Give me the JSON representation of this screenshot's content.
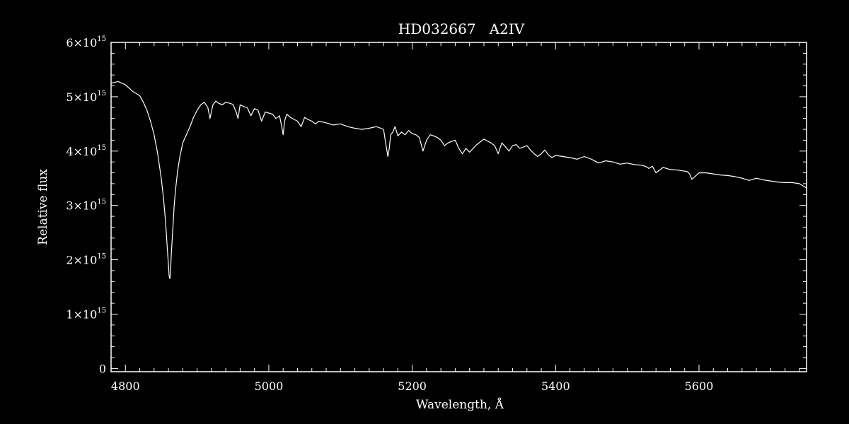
{
  "colors": {
    "background": "#000000",
    "foreground": "#ffffff"
  },
  "chart_data": {
    "type": "line",
    "title": "HD032667   A2IV",
    "xlabel": "Wavelength, Å",
    "ylabel": "Relative flux",
    "xlim": [
      4780,
      5750
    ],
    "ylim": [
      -60000000000000.0,
      6000000000000000.0
    ],
    "grid": false,
    "legend": "none",
    "x_ticks": [
      {
        "value": 4800,
        "label": "4800"
      },
      {
        "value": 5000,
        "label": "5000"
      },
      {
        "value": 5200,
        "label": "5200"
      },
      {
        "value": 5400,
        "label": "5400"
      },
      {
        "value": 5600,
        "label": "5600"
      }
    ],
    "y_ticks": [
      {
        "value": 0,
        "mant": "0",
        "exp": ""
      },
      {
        "value": 1000000000000000.0,
        "mant": "1×10",
        "exp": "15"
      },
      {
        "value": 2000000000000000.0,
        "mant": "2×10",
        "exp": "15"
      },
      {
        "value": 3000000000000000.0,
        "mant": "3×10",
        "exp": "15"
      },
      {
        "value": 4000000000000000.0,
        "mant": "4×10",
        "exp": "15"
      },
      {
        "value": 5000000000000000.0,
        "mant": "5×10",
        "exp": "15"
      },
      {
        "value": 6000000000000000.0,
        "mant": "6×10",
        "exp": "15"
      }
    ],
    "series": [
      {
        "x": [
          4780,
          4790,
          4800,
          4810,
          4820,
          4825,
          4830,
          4835,
          4840,
          4845,
          4850,
          4853,
          4856,
          4858,
          4860,
          4861,
          4862,
          4863,
          4864,
          4866,
          4868,
          4870,
          4873,
          4876,
          4880,
          4885,
          4890,
          4895,
          4900,
          4905,
          4910,
          4915,
          4918,
          4922,
          4926,
          4930,
          4935,
          4940,
          4945,
          4950,
          4955,
          4957,
          4960,
          4965,
          4970,
          4975,
          4980,
          4985,
          4990,
          4995,
          5000,
          5005,
          5010,
          5015,
          5018,
          5020,
          5022,
          5025,
          5030,
          5040,
          5045,
          5050,
          5055,
          5060,
          5065,
          5070,
          5080,
          5090,
          5100,
          5110,
          5120,
          5130,
          5140,
          5150,
          5160,
          5163,
          5166,
          5168,
          5170,
          5173,
          5176,
          5180,
          5185,
          5190,
          5195,
          5200,
          5205,
          5210,
          5215,
          5220,
          5225,
          5230,
          5235,
          5240,
          5245,
          5250,
          5255,
          5260,
          5265,
          5270,
          5275,
          5280,
          5290,
          5300,
          5310,
          5315,
          5320,
          5325,
          5330,
          5335,
          5340,
          5345,
          5350,
          5360,
          5365,
          5370,
          5375,
          5380,
          5385,
          5390,
          5395,
          5400,
          5410,
          5420,
          5430,
          5440,
          5450,
          5460,
          5470,
          5480,
          5490,
          5500,
          5510,
          5520,
          5525,
          5528,
          5530,
          5535,
          5540,
          5550,
          5560,
          5570,
          5580,
          5584,
          5587,
          5590,
          5600,
          5610,
          5620,
          5630,
          5640,
          5650,
          5660,
          5670,
          5680,
          5690,
          5700,
          5710,
          5720,
          5730,
          5740,
          5745,
          5750
        ],
        "y": [
          5250000000000000.0,
          5280000000000000.0,
          5220000000000000.0,
          5100000000000000.0,
          5020000000000000.0,
          4900000000000000.0,
          4750000000000000.0,
          4550000000000000.0,
          4300000000000000.0,
          3950000000000000.0,
          3500000000000000.0,
          3150000000000000.0,
          2700000000000000.0,
          2300000000000000.0,
          1900000000000000.0,
          1700000000000000.0,
          1650000000000000.0,
          1800000000000000.0,
          2100000000000000.0,
          2550000000000000.0,
          3000000000000000.0,
          3300000000000000.0,
          3650000000000000.0,
          3900000000000000.0,
          4150000000000000.0,
          4300000000000000.0,
          4450000000000000.0,
          4620000000000000.0,
          4750000000000000.0,
          4850000000000000.0,
          4900000000000000.0,
          4800000000000000.0,
          4600000000000000.0,
          4850000000000000.0,
          4920000000000000.0,
          4880000000000000.0,
          4850000000000000.0,
          4900000000000000.0,
          4880000000000000.0,
          4860000000000000.0,
          4700000000000000.0,
          4600000000000000.0,
          4850000000000000.0,
          4820000000000000.0,
          4800000000000000.0,
          4650000000000000.0,
          4780000000000000.0,
          4750000000000000.0,
          4550000000000000.0,
          4720000000000000.0,
          4700000000000000.0,
          4680000000000000.0,
          4600000000000000.0,
          4650000000000000.0,
          4450000000000000.0,
          4300000000000000.0,
          4550000000000000.0,
          4680000000000000.0,
          4620000000000000.0,
          4550000000000000.0,
          4450000000000000.0,
          4620000000000000.0,
          4580000000000000.0,
          4550000000000000.0,
          4500000000000000.0,
          4550000000000000.0,
          4520000000000000.0,
          4480000000000000.0,
          4500000000000000.0,
          4450000000000000.0,
          4420000000000000.0,
          4400000000000000.0,
          4420000000000000.0,
          4450000000000000.0,
          4400000000000000.0,
          4150000000000000.0,
          3900000000000000.0,
          4050000000000000.0,
          4300000000000000.0,
          4350000000000000.0,
          4450000000000000.0,
          4280000000000000.0,
          4350000000000000.0,
          4300000000000000.0,
          4380000000000000.0,
          4320000000000000.0,
          4300000000000000.0,
          4250000000000000.0,
          4000000000000000.0,
          4200000000000000.0,
          4300000000000000.0,
          4280000000000000.0,
          4250000000000000.0,
          4200000000000000.0,
          4100000000000000.0,
          4150000000000000.0,
          4180000000000000.0,
          4200000000000000.0,
          4050000000000000.0,
          3950000000000000.0,
          4050000000000000.0,
          3980000000000000.0,
          4120000000000000.0,
          4220000000000000.0,
          4150000000000000.0,
          4100000000000000.0,
          3950000000000000.0,
          4150000000000000.0,
          4080000000000000.0,
          4000000000000000.0,
          4100000000000000.0,
          4120000000000000.0,
          4050000000000000.0,
          4100000000000000.0,
          4020000000000000.0,
          3950000000000000.0,
          3900000000000000.0,
          3950000000000000.0,
          4020000000000000.0,
          3930000000000000.0,
          3880000000000000.0,
          3920000000000000.0,
          3900000000000000.0,
          3880000000000000.0,
          3850000000000000.0,
          3900000000000000.0,
          3850000000000000.0,
          3780000000000000.0,
          3820000000000000.0,
          3800000000000000.0,
          3760000000000000.0,
          3780000000000000.0,
          3750000000000000.0,
          3740000000000000.0,
          3720000000000000.0,
          3700000000000000.0,
          3680000000000000.0,
          3720000000000000.0,
          3600000000000000.0,
          3700000000000000.0,
          3660000000000000.0,
          3650000000000000.0,
          3630000000000000.0,
          3620000000000000.0,
          3580000000000000.0,
          3480000000000000.0,
          3600000000000000.0,
          3600000000000000.0,
          3580000000000000.0,
          3560000000000000.0,
          3550000000000000.0,
          3530000000000000.0,
          3500000000000000.0,
          3460000000000000.0,
          3500000000000000.0,
          3470000000000000.0,
          3450000000000000.0,
          3430000000000000.0,
          3420000000000000.0,
          3420000000000000.0,
          3400000000000000.0,
          3360000000000000.0,
          3320000000000000.0
        ]
      }
    ]
  }
}
